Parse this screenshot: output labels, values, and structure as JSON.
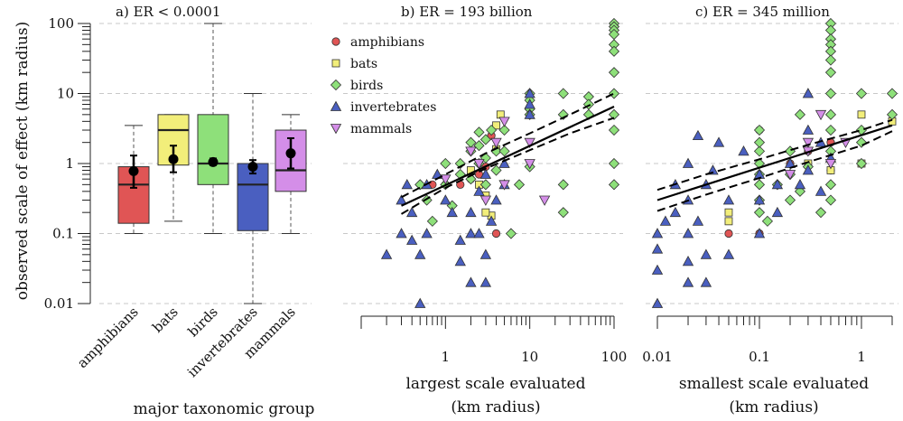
{
  "figure": {
    "ylabel": "observed scale of effect (km radius)",
    "colors": {
      "amphibians": "#e05555",
      "bats": "#f2ee7a",
      "birds": "#8ee07a",
      "invertebrates": "#4a5fc0",
      "mammals": "#d48ee8"
    },
    "y_ticks": [
      "100",
      "10",
      "1",
      "0.1",
      "0.01"
    ]
  },
  "chart_data": [
    {
      "type": "box",
      "title": "a) ER < 0.0001",
      "xlabel": "major taxonomic group",
      "ylabel": "observed scale of effect (km radius)",
      "y_scale": "log",
      "ylim": [
        0.01,
        100
      ],
      "categories": [
        "amphibians",
        "bats",
        "birds",
        "invertebrates",
        "mammals"
      ],
      "boxes": [
        {
          "name": "amphibians",
          "min": 0.1,
          "q1": 0.14,
          "median": 0.5,
          "q3": 0.9,
          "max": 3.5,
          "mean": 0.78,
          "ci_low": 0.45,
          "ci_high": 1.3
        },
        {
          "name": "bats",
          "min": 0.15,
          "q1": 0.95,
          "median": 3.0,
          "q3": 5.0,
          "max": 5.0,
          "mean": 1.15,
          "ci_low": 0.75,
          "ci_high": 1.8
        },
        {
          "name": "birds",
          "min": 0.1,
          "q1": 0.5,
          "median": 1.0,
          "q3": 5.0,
          "max": 100,
          "mean": 1.05,
          "ci_low": 0.95,
          "ci_high": 1.18
        },
        {
          "name": "invertebrates",
          "min": 0.01,
          "q1": 0.11,
          "median": 0.5,
          "q3": 1.0,
          "max": 10,
          "mean": 0.9,
          "ci_low": 0.72,
          "ci_high": 1.12
        },
        {
          "name": "mammals",
          "min": 0.1,
          "q1": 0.4,
          "median": 0.8,
          "q3": 3.0,
          "max": 5.0,
          "mean": 1.4,
          "ci_low": 0.85,
          "ci_high": 2.3
        }
      ]
    },
    {
      "type": "scatter",
      "title": "b) ER = 193 billion",
      "xlabel": "largest scale evaluated",
      "xlabel2": "(km radius)",
      "x_scale": "log",
      "y_scale": "log",
      "xlim": [
        0.1,
        100
      ],
      "ylim": [
        0.01,
        100
      ],
      "x_ticks": [
        "1",
        "10",
        "100"
      ],
      "legend": [
        "amphibians",
        "bats",
        "birds",
        "invertebrates",
        "mammals"
      ],
      "legend_position": "top-left",
      "fit": [
        [
          0.3,
          0.25
        ],
        [
          100,
          6.5
        ]
      ],
      "ci_upper": [
        [
          0.3,
          0.33
        ],
        [
          1,
          0.7
        ],
        [
          3,
          1.4
        ],
        [
          10,
          2.7
        ],
        [
          30,
          5.0
        ],
        [
          100,
          10.0
        ]
      ],
      "ci_lower": [
        [
          0.3,
          0.19
        ],
        [
          1,
          0.45
        ],
        [
          3,
          0.85
        ],
        [
          10,
          1.55
        ],
        [
          30,
          2.7
        ],
        [
          100,
          4.5
        ]
      ],
      "series": [
        {
          "name": "amphibians",
          "points": [
            [
              0.7,
              0.5
            ],
            [
              1.0,
              0.5
            ],
            [
              2.0,
              0.6
            ],
            [
              3.0,
              0.9
            ],
            [
              3.5,
              2.5
            ],
            [
              4.0,
              0.1
            ],
            [
              2.5,
              0.7
            ],
            [
              1.5,
              0.5
            ]
          ]
        },
        {
          "name": "bats",
          "points": [
            [
              2.0,
              0.8
            ],
            [
              3.0,
              0.35
            ],
            [
              3.5,
              0.18
            ],
            [
              4.0,
              1.6
            ],
            [
              4.0,
              3.5
            ],
            [
              4.5,
              5.0
            ],
            [
              2.5,
              0.5
            ],
            [
              3.0,
              0.2
            ]
          ]
        },
        {
          "name": "birds",
          "points": [
            [
              0.5,
              0.5
            ],
            [
              0.6,
              0.3
            ],
            [
              0.7,
              0.15
            ],
            [
              1.0,
              0.5
            ],
            [
              1.0,
              1.0
            ],
            [
              1.2,
              0.25
            ],
            [
              1.5,
              1.0
            ],
            [
              1.5,
              0.7
            ],
            [
              2.0,
              1.5
            ],
            [
              2.0,
              2.0
            ],
            [
              2.0,
              0.6
            ],
            [
              2.5,
              1.0
            ],
            [
              2.5,
              2.8
            ],
            [
              2.5,
              1.8
            ],
            [
              3.0,
              2.2
            ],
            [
              3.0,
              1.2
            ],
            [
              3.0,
              0.5
            ],
            [
              3.5,
              3.0
            ],
            [
              4.0,
              1.5
            ],
            [
              4.0,
              0.8
            ],
            [
              5.0,
              1.5
            ],
            [
              5.0,
              3.0
            ],
            [
              6.0,
              0.1
            ],
            [
              7.5,
              0.5
            ],
            [
              10,
              10
            ],
            [
              10,
              8
            ],
            [
              10,
              6
            ],
            [
              10,
              5
            ],
            [
              10,
              0.9
            ],
            [
              25,
              10
            ],
            [
              25,
              5
            ],
            [
              25,
              0.5
            ],
            [
              25,
              0.2
            ],
            [
              50,
              9
            ],
            [
              50,
              7
            ],
            [
              50,
              5
            ],
            [
              100,
              100
            ],
            [
              100,
              90
            ],
            [
              100,
              80
            ],
            [
              100,
              70
            ],
            [
              100,
              50
            ],
            [
              100,
              40
            ],
            [
              100,
              20
            ],
            [
              100,
              10
            ],
            [
              100,
              5
            ],
            [
              100,
              3
            ],
            [
              100,
              1
            ],
            [
              100,
              0.5
            ]
          ]
        },
        {
          "name": "invertebrates",
          "points": [
            [
              0.2,
              0.05
            ],
            [
              0.3,
              0.3
            ],
            [
              0.3,
              0.1
            ],
            [
              0.35,
              0.5
            ],
            [
              0.4,
              0.2
            ],
            [
              0.4,
              0.08
            ],
            [
              0.5,
              0.05
            ],
            [
              0.5,
              0.01
            ],
            [
              0.6,
              0.1
            ],
            [
              0.6,
              0.5
            ],
            [
              0.8,
              0.7
            ],
            [
              1.0,
              0.3
            ],
            [
              1.2,
              0.2
            ],
            [
              1.5,
              0.08
            ],
            [
              1.5,
              0.04
            ],
            [
              2.0,
              0.02
            ],
            [
              2.0,
              0.1
            ],
            [
              2.0,
              0.2
            ],
            [
              2.5,
              0.4
            ],
            [
              2.5,
              0.1
            ],
            [
              3.0,
              0.05
            ],
            [
              3.0,
              0.02
            ],
            [
              3.0,
              0.7
            ],
            [
              3.5,
              0.15
            ],
            [
              4.0,
              0.3
            ],
            [
              5.0,
              1.0
            ],
            [
              5.0,
              0.5
            ],
            [
              10,
              10
            ],
            [
              10,
              7
            ],
            [
              10,
              5
            ]
          ]
        },
        {
          "name": "mammals",
          "points": [
            [
              1.0,
              0.6
            ],
            [
              2.0,
              1.5
            ],
            [
              2.5,
              1.0
            ],
            [
              3.0,
              0.3
            ],
            [
              4.0,
              2.0
            ],
            [
              5.0,
              0.5
            ],
            [
              5.0,
              4.0
            ],
            [
              10,
              1.0
            ],
            [
              10,
              2.0
            ],
            [
              15,
              0.3
            ]
          ]
        }
      ]
    },
    {
      "type": "scatter",
      "title": "c) ER = 345 million",
      "xlabel": "smallest scale evaluated",
      "xlabel2": "(km radius)",
      "x_scale": "log",
      "y_scale": "log",
      "xlim": [
        0.01,
        2
      ],
      "ylim": [
        0.01,
        100
      ],
      "x_ticks": [
        "0.01",
        "0.1",
        "1"
      ],
      "fit": [
        [
          0.01,
          0.3
        ],
        [
          2,
          3.5
        ]
      ],
      "ci_upper": [
        [
          0.01,
          0.42
        ],
        [
          0.03,
          0.7
        ],
        [
          0.1,
          1.15
        ],
        [
          0.3,
          1.85
        ],
        [
          1,
          3.0
        ],
        [
          2,
          4.2
        ]
      ],
      "ci_lower": [
        [
          0.01,
          0.21
        ],
        [
          0.03,
          0.36
        ],
        [
          0.1,
          0.62
        ],
        [
          0.3,
          1.05
        ],
        [
          1,
          1.8
        ],
        [
          2,
          2.9
        ]
      ],
      "series": [
        {
          "name": "amphibians",
          "points": [
            [
              0.05,
              0.1
            ],
            [
              0.1,
              0.1
            ],
            [
              0.1,
              3.0
            ],
            [
              0.2,
              1.0
            ],
            [
              0.3,
              1.5
            ],
            [
              0.5,
              0.8
            ],
            [
              0.5,
              2.0
            ]
          ]
        },
        {
          "name": "bats",
          "points": [
            [
              0.05,
              0.2
            ],
            [
              0.05,
              0.15
            ],
            [
              0.3,
              1.0
            ],
            [
              0.5,
              0.8
            ],
            [
              1.0,
              5.0
            ],
            [
              1.0,
              1.0
            ],
            [
              2.0,
              4.0
            ]
          ]
        },
        {
          "name": "birds",
          "points": [
            [
              0.1,
              0.2
            ],
            [
              0.1,
              0.3
            ],
            [
              0.1,
              0.5
            ],
            [
              0.1,
              0.7
            ],
            [
              0.1,
              1.0
            ],
            [
              0.1,
              1.5
            ],
            [
              0.1,
              2.0
            ],
            [
              0.1,
              3.0
            ],
            [
              0.12,
              0.15
            ],
            [
              0.15,
              0.5
            ],
            [
              0.2,
              0.3
            ],
            [
              0.2,
              0.7
            ],
            [
              0.2,
              1.5
            ],
            [
              0.25,
              5
            ],
            [
              0.25,
              0.4
            ],
            [
              0.3,
              0.9
            ],
            [
              0.4,
              0.2
            ],
            [
              0.5,
              100
            ],
            [
              0.5,
              80
            ],
            [
              0.5,
              60
            ],
            [
              0.5,
              50
            ],
            [
              0.5,
              40
            ],
            [
              0.5,
              30
            ],
            [
              0.5,
              20
            ],
            [
              0.5,
              10
            ],
            [
              0.5,
              5
            ],
            [
              0.5,
              3
            ],
            [
              0.5,
              1.5
            ],
            [
              0.5,
              0.5
            ],
            [
              0.5,
              0.3
            ],
            [
              1.0,
              10
            ],
            [
              1.0,
              3
            ],
            [
              1.0,
              2
            ],
            [
              1.0,
              1
            ],
            [
              2.0,
              10
            ],
            [
              2.0,
              5
            ]
          ]
        },
        {
          "name": "invertebrates",
          "points": [
            [
              0.01,
              0.01
            ],
            [
              0.01,
              0.03
            ],
            [
              0.01,
              0.06
            ],
            [
              0.01,
              0.1
            ],
            [
              0.012,
              0.15
            ],
            [
              0.015,
              0.2
            ],
            [
              0.015,
              0.5
            ],
            [
              0.02,
              0.02
            ],
            [
              0.02,
              0.04
            ],
            [
              0.02,
              0.1
            ],
            [
              0.02,
              0.3
            ],
            [
              0.02,
              1.0
            ],
            [
              0.025,
              2.5
            ],
            [
              0.025,
              0.15
            ],
            [
              0.03,
              0.05
            ],
            [
              0.03,
              0.02
            ],
            [
              0.03,
              0.5
            ],
            [
              0.035,
              0.8
            ],
            [
              0.04,
              2.0
            ],
            [
              0.05,
              0.3
            ],
            [
              0.05,
              0.05
            ],
            [
              0.07,
              1.5
            ],
            [
              0.1,
              0.1
            ],
            [
              0.1,
              0.3
            ],
            [
              0.1,
              0.7
            ],
            [
              0.15,
              0.2
            ],
            [
              0.15,
              0.5
            ],
            [
              0.2,
              1.0
            ],
            [
              0.25,
              0.5
            ],
            [
              0.3,
              10
            ],
            [
              0.3,
              3
            ],
            [
              0.3,
              0.8
            ],
            [
              0.4,
              0.4
            ],
            [
              0.4,
              2.0
            ],
            [
              0.5,
              1.2
            ]
          ]
        },
        {
          "name": "mammals",
          "points": [
            [
              0.2,
              0.7
            ],
            [
              0.3,
              2.0
            ],
            [
              0.3,
              1.5
            ],
            [
              0.4,
              5.0
            ],
            [
              0.5,
              1.0
            ],
            [
              0.7,
              2.0
            ]
          ]
        }
      ]
    }
  ]
}
